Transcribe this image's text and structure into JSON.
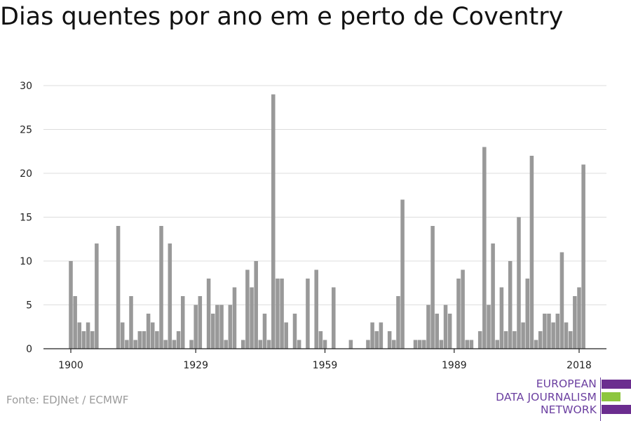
{
  "title": "Dias quentes por ano em e perto de Coventry",
  "source": "Fonte: EDJNet / ECMWF",
  "logo": {
    "lines": [
      "EUROPEAN",
      "DATA JOURNALISM",
      "NETWORK"
    ],
    "colors": [
      "#6b2d8f",
      "#8dc63f",
      "#6b2d8f"
    ]
  },
  "chart_data": {
    "type": "bar",
    "title": "Dias quentes por ano em e perto de Coventry",
    "xlabel": "",
    "ylabel": "",
    "x_start": 1900,
    "x_end": 2018,
    "x_ticks": [
      1900,
      1929,
      1959,
      1989,
      2018
    ],
    "ylim": [
      0,
      30
    ],
    "y_ticks": [
      0,
      5,
      10,
      15,
      20,
      25,
      30
    ],
    "grid": true,
    "bar_color": "#999999",
    "values": [
      10,
      6,
      3,
      2,
      3,
      2,
      12,
      0,
      0,
      0,
      0,
      14,
      3,
      1,
      6,
      1,
      2,
      2,
      4,
      3,
      2,
      14,
      1,
      12,
      1,
      2,
      6,
      0,
      1,
      5,
      6,
      0,
      8,
      4,
      5,
      5,
      1,
      5,
      7,
      0,
      1,
      9,
      7,
      10,
      1,
      4,
      1,
      29,
      8,
      8,
      3,
      0,
      4,
      1,
      0,
      8,
      0,
      9,
      2,
      1,
      0,
      7,
      0,
      0,
      0,
      1,
      0,
      0,
      0,
      1,
      3,
      2,
      3,
      0,
      2,
      1,
      6,
      17,
      0,
      0,
      1,
      1,
      1,
      5,
      14,
      4,
      1,
      5,
      4,
      0,
      8,
      9,
      1,
      1,
      0,
      2,
      23,
      5,
      12,
      1,
      7,
      2,
      10,
      2,
      15,
      3,
      8,
      22,
      1,
      2,
      4,
      4,
      3,
      4,
      11,
      3,
      2,
      6,
      7,
      21
    ]
  }
}
